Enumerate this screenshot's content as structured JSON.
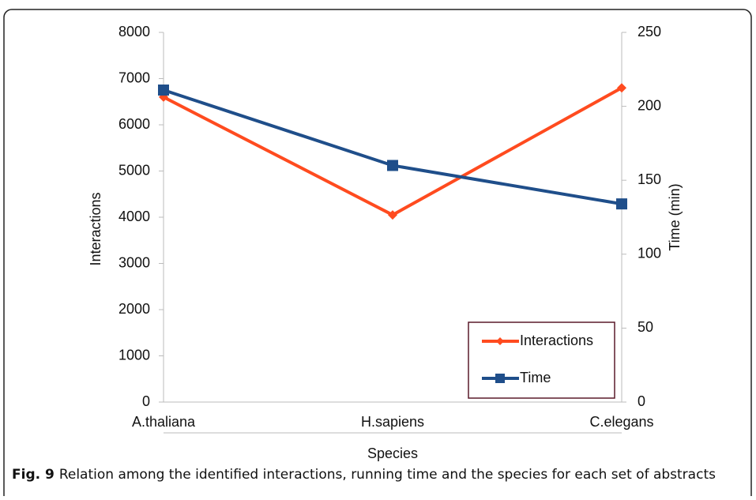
{
  "chart_data": {
    "type": "line",
    "categories": [
      "A.thaliana",
      "H.sapiens",
      "C.elegans"
    ],
    "series": [
      {
        "name": "Interactions",
        "color": "#ff4b1f",
        "values": [
          6600,
          4050,
          6800
        ]
      },
      {
        "name": "Time",
        "color": "#1f4e8a",
        "values": [
          211,
          160,
          134
        ],
        "axis": "y2"
      }
    ],
    "ylim": [
      0,
      8000
    ],
    "yticks": [
      0,
      1000,
      2000,
      3000,
      4000,
      5000,
      6000,
      7000,
      8000
    ],
    "y2lim": [
      0,
      250
    ],
    "y2ticks": [
      0,
      50,
      100,
      150,
      200,
      250
    ],
    "ylabel": "Interactions",
    "y2label": "Time (min)",
    "xlabel": "Species",
    "legend": "lower right",
    "grid": false
  },
  "caption": {
    "label": "Fig. 9",
    "text": "Relation among the identified interactions, running time and the species for each set of abstracts"
  }
}
